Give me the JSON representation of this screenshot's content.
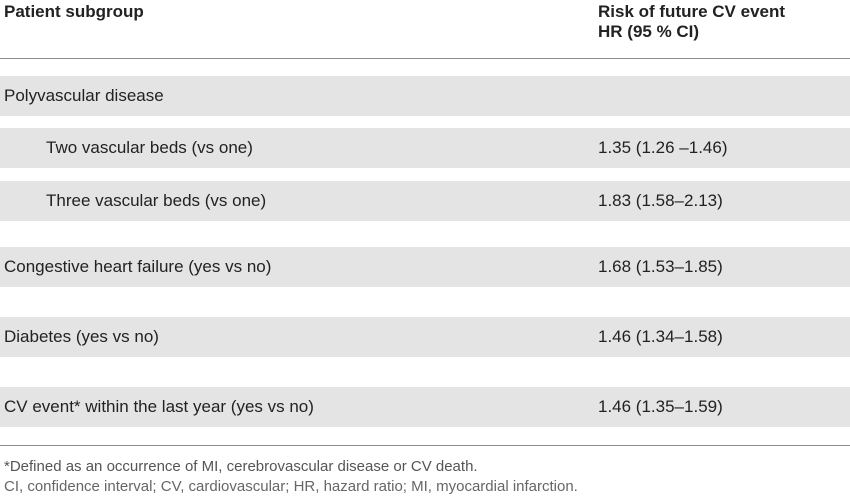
{
  "header": {
    "col1": "Patient subgroup",
    "col2_line1": "Risk of future CV event",
    "col2_line2": "HR (95 % CI)"
  },
  "rows": [
    {
      "label": "Polyvascular disease",
      "value": ""
    },
    {
      "label": "Two vascular beds (vs one)",
      "value": "1.35 (1.26 –1.46)"
    },
    {
      "label": "Three vascular beds (vs one)",
      "value": "1.83 (1.58–2.13)"
    },
    {
      "label": "Congestive heart failure (yes vs no)",
      "value": "1.68 (1.53–1.85)"
    },
    {
      "label": "Diabetes (yes vs no)",
      "value": "1.46 (1.34–1.58)"
    },
    {
      "label": "CV event* within the last year (yes vs no)",
      "value": "1.46 (1.35–1.59)"
    }
  ],
  "footnotes": {
    "asterisk": "*Defined as an occurrence of MI, cerebrovascular disease or CV death.",
    "abbreviations": "CI, confidence interval; CV, cardiovascular; HR, hazard ratio; MI, myocardial infarction."
  }
}
